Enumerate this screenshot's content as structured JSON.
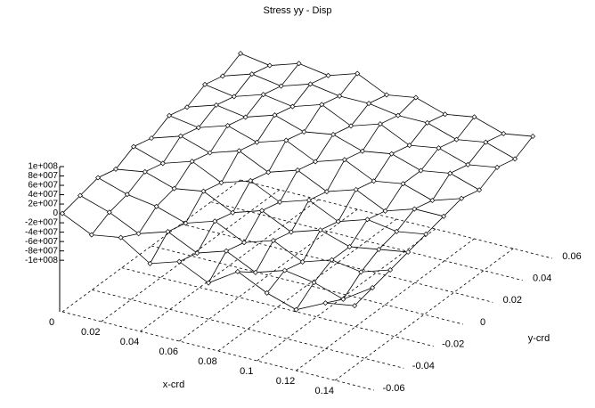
{
  "chart_data": {
    "type": "surface",
    "title": "Stress yy - Disp",
    "x_label": "x-crd",
    "y_label": "y-crd",
    "x": [
      0,
      0.015,
      0.03,
      0.045,
      0.06,
      0.075,
      0.09,
      0.105,
      0.12,
      0.135,
      0.15
    ],
    "y": [
      -0.06,
      -0.048,
      -0.036,
      -0.024,
      -0.012,
      0,
      0.012,
      0.024,
      0.036,
      0.048,
      0.06
    ],
    "z": [
      [
        0,
        -30000000.0,
        -20000000.0,
        -60000000.0,
        -40000000.0,
        -70000000.0,
        -30000000.0,
        -60000000.0,
        -80000000.0,
        -50000000.0,
        -40000000.0
      ],
      [
        10000000.0,
        -10000000.0,
        -40000000.0,
        -20000000.0,
        -50000000.0,
        -30000000.0,
        -60000000.0,
        -40000000.0,
        -50000000.0,
        -70000000.0,
        -30000000.0
      ],
      [
        20000000.0,
        0,
        -10000000.0,
        -30000000.0,
        -10000000.0,
        -40000000.0,
        -20000000.0,
        -50000000.0,
        -30000000.0,
        -40000000.0,
        -20000000.0
      ],
      [
        10000000.0,
        20000000.0,
        0,
        10000000.0,
        -20000000.0,
        0,
        -30000000.0,
        -10000000.0,
        -30000000.0,
        -20000000.0,
        -10000000.0
      ],
      [
        30000000.0,
        10000000.0,
        30000000.0,
        0,
        20000000.0,
        -10000000.0,
        10000000.0,
        -20000000.0,
        0,
        -10000000.0,
        0
      ],
      [
        20000000.0,
        40000000.0,
        20000000.0,
        40000000.0,
        10000000.0,
        30000000.0,
        0,
        20000000.0,
        -10000000.0,
        10000000.0,
        10000000.0
      ],
      [
        40000000.0,
        30000000.0,
        50000000.0,
        30000000.0,
        50000000.0,
        20000000.0,
        40000000.0,
        10000000.0,
        20000000.0,
        0,
        20000000.0
      ],
      [
        30000000.0,
        50000000.0,
        40000000.0,
        60000000.0,
        40000000.0,
        50000000.0,
        30000000.0,
        40000000.0,
        20000000.0,
        30000000.0,
        10000000.0
      ],
      [
        50000000.0,
        40000000.0,
        60000000.0,
        50000000.0,
        70000000.0,
        40000000.0,
        60000000.0,
        30000000.0,
        40000000.0,
        20000000.0,
        30000000.0
      ],
      [
        40000000.0,
        60000000.0,
        50000000.0,
        70000000.0,
        60000000.0,
        60000000.0,
        50000000.0,
        50000000.0,
        30000000.0,
        40000000.0,
        20000000.0
      ],
      [
        60000000.0,
        50000000.0,
        70000000.0,
        60000000.0,
        80000000.0,
        50000000.0,
        60000000.0,
        40000000.0,
        50000000.0,
        30000000.0,
        40000000.0
      ]
    ],
    "color": "#000000",
    "xlim": [
      0,
      0.16
    ],
    "ylim": [
      -0.06,
      0.06
    ],
    "zlim": [
      -210000000,
      100000000
    ],
    "xticks": [
      0,
      0.02,
      0.04,
      0.06,
      0.08,
      0.1,
      0.12,
      0.14
    ],
    "yticks": [
      -0.06,
      -0.04,
      -0.02,
      0,
      0.02,
      0.04,
      0.06
    ],
    "zticks": [
      {
        "value": 100000000,
        "label": "1e+008"
      },
      {
        "value": 80000000,
        "label": "8e+007"
      },
      {
        "value": 60000000,
        "label": "6e+007"
      },
      {
        "value": 40000000,
        "label": "4e+007"
      },
      {
        "value": 20000000,
        "label": "2e+007"
      },
      0,
      {
        "value": -20000000,
        "label": "-2e+007"
      },
      {
        "value": -40000000,
        "label": "-4e+007"
      },
      {
        "value": -60000000,
        "label": "-6e+007"
      },
      {
        "value": -80000000,
        "label": "-8e+007"
      },
      {
        "value": -100000000,
        "label": "-1e+008"
      }
    ],
    "grid": true
  }
}
